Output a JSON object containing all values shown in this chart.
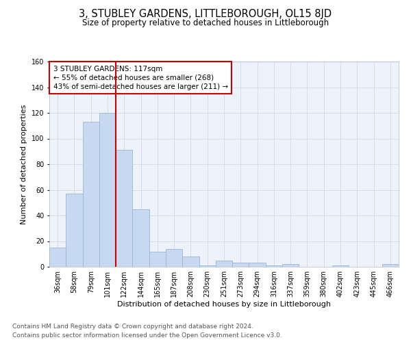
{
  "title": "3, STUBLEY GARDENS, LITTLEBOROUGH, OL15 8JD",
  "subtitle": "Size of property relative to detached houses in Littleborough",
  "xlabel": "Distribution of detached houses by size in Littleborough",
  "ylabel": "Number of detached properties",
  "categories": [
    "36sqm",
    "58sqm",
    "79sqm",
    "101sqm",
    "122sqm",
    "144sqm",
    "165sqm",
    "187sqm",
    "208sqm",
    "230sqm",
    "251sqm",
    "273sqm",
    "294sqm",
    "316sqm",
    "337sqm",
    "359sqm",
    "380sqm",
    "402sqm",
    "423sqm",
    "445sqm",
    "466sqm"
  ],
  "values": [
    15,
    57,
    113,
    120,
    91,
    45,
    12,
    14,
    8,
    1,
    5,
    3,
    3,
    1,
    2,
    0,
    0,
    1,
    0,
    0,
    2
  ],
  "bar_color": "#c6d9f0",
  "bar_edge_color": "#9ab6d4",
  "vline_after_index": 3,
  "vline_color": "#cc0000",
  "annotation_text": "3 STUBLEY GARDENS: 117sqm\n← 55% of detached houses are smaller (268)\n43% of semi-detached houses are larger (211) →",
  "annotation_box_color": "#ffffff",
  "annotation_box_edge_color": "#cc0000",
  "grid_color": "#c8d4e8",
  "background_color": "#edf2fb",
  "footer_text": "Contains HM Land Registry data © Crown copyright and database right 2024.\nContains public sector information licensed under the Open Government Licence v3.0.",
  "ylim": [
    0,
    160
  ],
  "title_fontsize": 10.5,
  "subtitle_fontsize": 8.5,
  "axis_label_fontsize": 8,
  "tick_fontsize": 7,
  "footer_fontsize": 6.5,
  "annotation_fontsize": 7.5
}
